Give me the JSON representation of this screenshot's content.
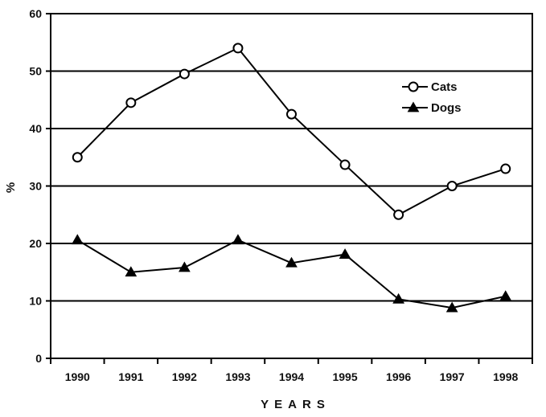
{
  "chart_data": {
    "type": "line",
    "title": "",
    "xlabel": "YEARS",
    "ylabel": "%",
    "ylim": [
      0,
      60
    ],
    "yticks": [
      0,
      10,
      20,
      30,
      40,
      50,
      60
    ],
    "categories": [
      "1990",
      "1991",
      "1992",
      "1993",
      "1994",
      "1995",
      "1996",
      "1997",
      "1998"
    ],
    "grid": "horizontal",
    "legend_position": "top-right",
    "series": [
      {
        "name": "Cats",
        "marker": "open-circle",
        "color": "#000000",
        "values": [
          35,
          44.5,
          49.5,
          54,
          42.5,
          33.7,
          25,
          30,
          33
        ]
      },
      {
        "name": "Dogs",
        "marker": "filled-triangle",
        "color": "#000000",
        "values": [
          20.6,
          15,
          15.8,
          20.6,
          16.6,
          18.1,
          10.3,
          8.8,
          10.8
        ]
      }
    ]
  }
}
